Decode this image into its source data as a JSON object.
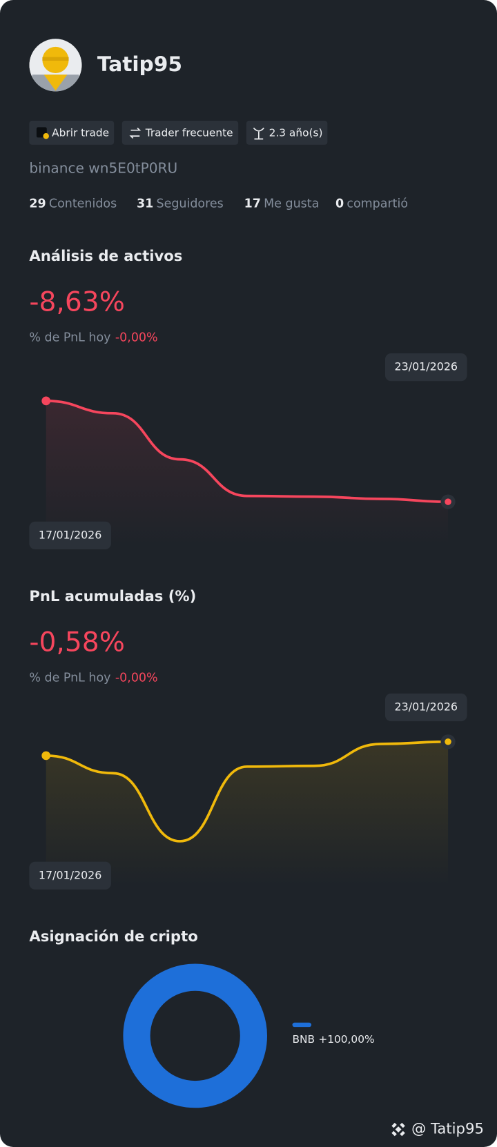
{
  "profile": {
    "name": "Tatip95",
    "badges": [
      "Abrir trade",
      "Trader frecuente",
      "2.3 año(s)"
    ],
    "account": "binance wn5E0tP0RU",
    "stats": [
      {
        "count": 29,
        "label": "Contenidos"
      },
      {
        "count": 31,
        "label": "Seguidores"
      },
      {
        "count": 17,
        "label": "Me gusta"
      },
      {
        "count": 0,
        "label": "compartió"
      }
    ]
  },
  "chart_data": [
    {
      "type": "line",
      "title": "Análisis de activos",
      "headline": "-8,63%",
      "subtitle_label": "% de PnL hoy",
      "subtitle_value": "-0,00%",
      "categories": [
        "17/01/2026",
        null,
        null,
        null,
        null,
        null,
        "23/01/2026"
      ],
      "series": [
        {
          "color": "#f6465d",
          "values": [
            0,
            -1.06,
            -5.0,
            -8.13,
            -8.19,
            -8.38,
            -8.63
          ]
        }
      ]
    },
    {
      "type": "line",
      "title": "PnL acumuladas (%)",
      "headline": "-0,58%",
      "subtitle_label": "% de PnL hoy",
      "subtitle_value": "-0,00%",
      "categories": [
        "17/01/2026",
        null,
        null,
        null,
        null,
        null,
        "23/01/2026"
      ],
      "series": [
        {
          "color": "#f0b90b",
          "values": [
            -0.77,
            -1.01,
            -1.94,
            -0.92,
            -0.91,
            -0.61,
            -0.58
          ]
        }
      ]
    },
    {
      "type": "donut",
      "title": "Asignación de cripto",
      "categories": [
        "BNB"
      ],
      "values": [
        100
      ],
      "value_labels": [
        "+100,00%"
      ],
      "colors": [
        "#1e6fd9"
      ]
    }
  ],
  "footer": "@ Tatip95"
}
